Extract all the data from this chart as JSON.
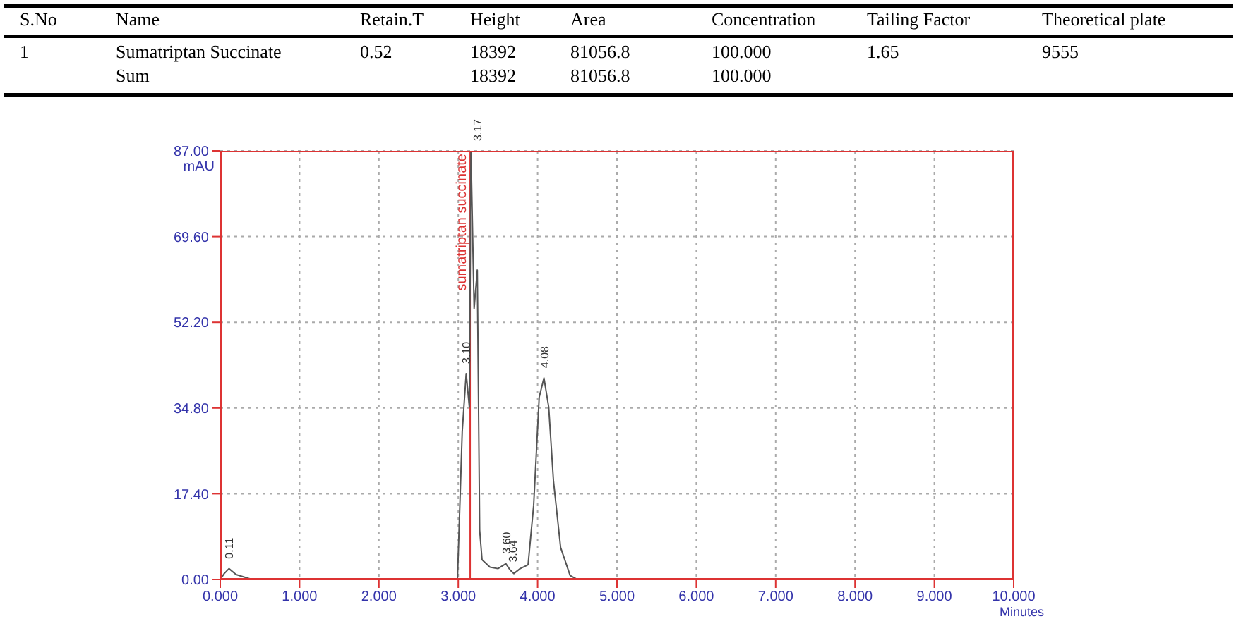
{
  "chart_data": {
    "type": "line",
    "xlabel": "Minutes",
    "ylabel": "mAU",
    "annotations": [
      "S.No",
      "Name",
      "Retain.T",
      "Height",
      "Area",
      "Concentration",
      "Tailing Factor",
      "Theoretical plate",
      "1",
      "Sumatriptan Succinate",
      "0.52",
      "18392",
      "81056.8",
      "100.000",
      "1.65",
      "9555",
      "Sum",
      "18392",
      "81056.8",
      "100.000",
      {
        "text": "0.11",
        "x": 0.11,
        "y": 2.2
      },
      {
        "text": "3.10",
        "x": 3.1,
        "y": 41.8
      },
      {
        "text": "3.17",
        "x": 3.24,
        "y": 87
      },
      {
        "text": "3.60",
        "x": 3.6,
        "y": 3.2
      },
      {
        "text": "3.64",
        "x": 3.68,
        "y": 1.5
      },
      {
        "text": "4.08",
        "x": 4.08,
        "y": 40.9
      }
    ],
    "series": [
      {
        "color": "#555555",
        "x": [
          0,
          0.05,
          0.11,
          0.2,
          0.4,
          2.95,
          2.99,
          3.05,
          3.1,
          3.14,
          3.16,
          3.2,
          3.24,
          3.27,
          3.3,
          3.4,
          3.5,
          3.6,
          3.65,
          3.7,
          3.78,
          3.88,
          3.95,
          4.02,
          4.08,
          4.14,
          4.2,
          4.29,
          4.41,
          4.5,
          10
        ],
        "values": [
          0,
          1.2,
          2.2,
          1,
          0,
          0,
          0,
          30,
          41.8,
          35,
          87,
          55,
          62.8,
          10,
          4,
          2.5,
          2.2,
          3.2,
          2,
          1.2,
          2.2,
          3,
          15,
          37,
          40.9,
          35,
          20,
          6.5,
          0.8,
          0,
          0
        ]
      }
    ],
    "xlim": [
      0,
      10
    ],
    "xticks": [
      {
        "value": 0,
        "label": "0.000"
      },
      {
        "value": 1,
        "label": "1.000"
      },
      {
        "value": 2,
        "label": "2.000"
      },
      {
        "value": 3,
        "label": "3.000"
      },
      {
        "value": 4,
        "label": "4.000"
      },
      {
        "value": 5,
        "label": "5.000"
      },
      {
        "value": 6,
        "label": "6.000"
      },
      {
        "value": 7,
        "label": "7.000"
      },
      {
        "value": 8,
        "label": "8.000"
      },
      {
        "value": 9,
        "label": "9.000"
      },
      {
        "value": 10,
        "label": "10.000"
      }
    ],
    "ylim": [
      0,
      87
    ],
    "yticks": [
      {
        "value": 0,
        "label": "0.00"
      },
      {
        "value": 17.4,
        "label": "17.40"
      },
      {
        "value": 34.8,
        "label": "34.80"
      },
      {
        "value": 52.2,
        "label": "52.20"
      },
      {
        "value": 69.6,
        "label": "69.60"
      },
      {
        "value": 87,
        "label": "87.00"
      }
    ],
    "ref_lines": [
      {
        "axis": "x",
        "value": 3.15,
        "label": "sumatriptan succinate",
        "color": "#dd3333"
      }
    ],
    "grid": true,
    "marker": "none",
    "line_style": "solid"
  }
}
